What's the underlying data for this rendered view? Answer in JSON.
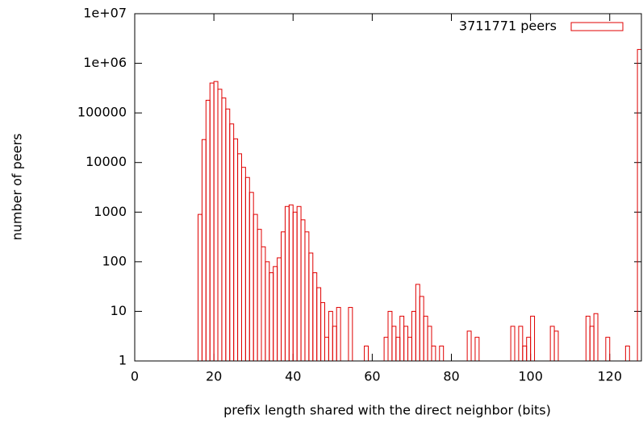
{
  "chart_data": {
    "type": "bar",
    "xlabel": "prefix length shared with the direct neighbor (bits)",
    "ylabel": "number of peers",
    "log_y": true,
    "color": "#e00000",
    "series": [
      {
        "name": "3711771 peers",
        "color": "#e00000",
        "x": [
          16,
          17,
          18,
          19,
          20,
          21,
          22,
          23,
          24,
          25,
          26,
          27,
          28,
          29,
          30,
          31,
          32,
          33,
          34,
          35,
          36,
          37,
          38,
          39,
          40,
          41,
          42,
          43,
          44,
          45,
          46,
          47,
          48,
          49,
          50,
          51,
          54,
          58,
          63,
          64,
          65,
          66,
          67,
          68,
          69,
          70,
          71,
          72,
          73,
          74,
          75,
          77,
          84,
          86,
          95,
          97,
          98,
          99,
          100,
          105,
          106,
          114,
          115,
          116,
          119,
          124,
          127
        ],
        "values": [
          900,
          29000,
          180000,
          400000,
          430000,
          300000,
          200000,
          120000,
          60000,
          30000,
          15000,
          8000,
          5000,
          2500,
          900,
          450,
          200,
          100,
          60,
          80,
          120,
          400,
          1300,
          1400,
          1000,
          1300,
          700,
          400,
          150,
          60,
          30,
          15,
          3,
          10,
          5,
          12,
          12,
          2,
          3,
          10,
          5,
          3,
          8,
          5,
          3,
          10,
          35,
          20,
          8,
          5,
          2,
          2,
          4,
          3,
          5,
          5,
          2,
          3,
          8,
          5,
          4,
          8,
          5,
          9,
          3,
          2,
          1900000
        ]
      }
    ],
    "xlim": [
      0,
      128
    ],
    "xticks": [
      0,
      20,
      40,
      60,
      80,
      100,
      120
    ],
    "ylim": [
      1,
      10000000
    ],
    "yticks": [
      1,
      10,
      100,
      1000,
      10000,
      100000,
      {
        "value": 1000000,
        "label": "1e+06"
      },
      {
        "value": 10000000,
        "label": "1e+07"
      }
    ]
  }
}
